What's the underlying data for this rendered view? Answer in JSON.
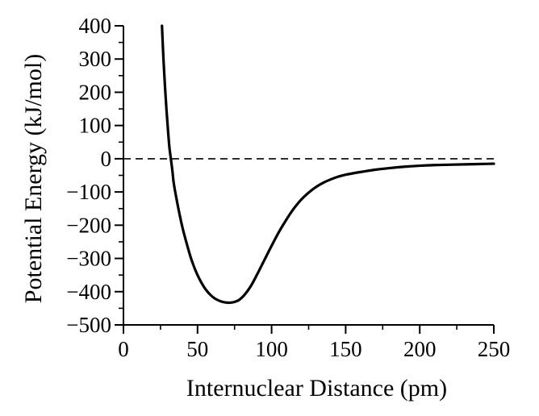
{
  "chart_data": {
    "type": "line",
    "title": "",
    "xlabel": "Internuclear Distance (pm)",
    "ylabel": "Potential Energy (kJ/mol)",
    "xlim": [
      0,
      250
    ],
    "ylim": [
      -500,
      400
    ],
    "x_ticks": [
      0,
      50,
      100,
      150,
      200,
      250
    ],
    "x_tick_labels": [
      "0",
      "50",
      "100",
      "150",
      "200",
      "250"
    ],
    "y_ticks": [
      400,
      300,
      200,
      100,
      0,
      -100,
      -200,
      -300,
      -400,
      -500
    ],
    "y_tick_labels": [
      "400",
      "300",
      "200",
      "100",
      "0",
      "−100",
      "−200",
      "−300",
      "−400",
      "−500"
    ],
    "grid": false,
    "legend": "none",
    "reference_line": {
      "y": 0,
      "style": "dashed"
    },
    "series": [
      {
        "x": [
          26,
          27,
          28,
          29,
          30,
          31,
          32,
          33,
          34,
          36,
          38,
          40,
          43,
          46,
          50,
          55,
          60,
          65,
          70,
          74,
          78,
          82,
          86,
          90,
          95,
          100,
          105,
          110,
          115,
          120,
          125,
          130,
          135,
          140,
          145,
          150,
          160,
          170,
          180,
          190,
          200,
          210,
          220,
          230,
          240,
          250
        ],
        "y": [
          400,
          300,
          220,
          150,
          90,
          35,
          0,
          -35,
          -75,
          -125,
          -170,
          -210,
          -260,
          -305,
          -350,
          -390,
          -415,
          -428,
          -433,
          -432,
          -425,
          -408,
          -383,
          -350,
          -306,
          -262,
          -220,
          -183,
          -150,
          -123,
          -102,
          -85,
          -72,
          -62,
          -54,
          -48,
          -40,
          -33,
          -28,
          -24,
          -21,
          -19,
          -18,
          -17,
          -16,
          -15
        ]
      }
    ]
  }
}
